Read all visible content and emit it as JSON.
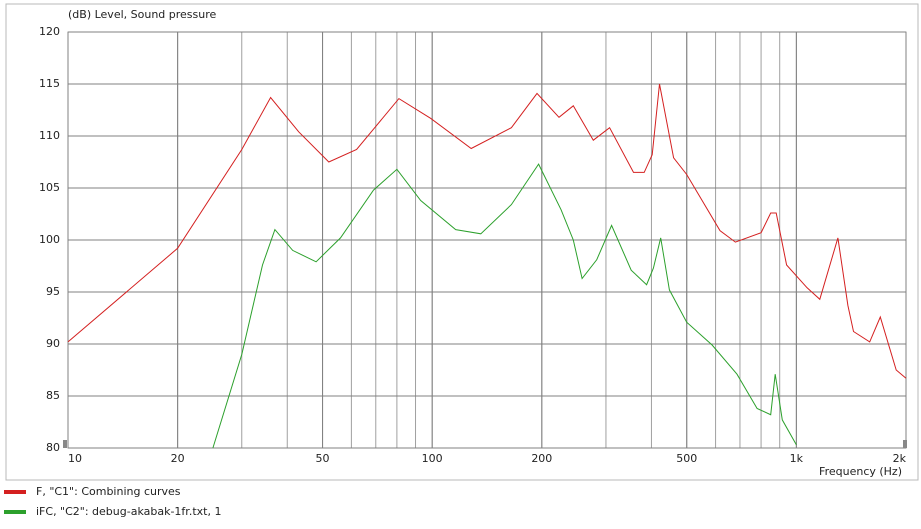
{
  "chart_data": {
    "type": "line",
    "ylabel": "(dB) Level, Sound pressure",
    "xlabel": "Frequency (Hz)",
    "xscale": "log",
    "grid": true,
    "xlim": [
      10,
      2000
    ],
    "ylim": [
      80,
      120
    ],
    "xticks": [
      10,
      20,
      50,
      100,
      200,
      500,
      {
        "value": 1000,
        "label": "1k"
      },
      {
        "value": 2000,
        "label": "2k"
      }
    ],
    "yticks": [
      80,
      85,
      90,
      95,
      100,
      105,
      110,
      115,
      120
    ],
    "legend": "bottom",
    "series": [
      {
        "name": "F, \"C1\": Combining curves",
        "color": "#d42020",
        "x": [
          10,
          20,
          30,
          36,
          43,
          52,
          62,
          81,
          99,
          128,
          165,
          194,
          223,
          244,
          277,
          307,
          357,
          382,
          402,
          421,
          460,
          500,
          617,
          680,
          800,
          850,
          880,
          940,
          1070,
          1160,
          1300,
          1385,
          1435,
          1590,
          1700,
          1880,
          2000
        ],
        "values": [
          90.2,
          99.2,
          108.7,
          113.7,
          110.4,
          107.5,
          108.7,
          113.6,
          111.7,
          108.8,
          110.8,
          114.1,
          111.8,
          112.9,
          109.6,
          110.8,
          106.5,
          106.5,
          108.2,
          115,
          107.9,
          106.3,
          100.9,
          99.8,
          100.7,
          102.6,
          102.6,
          97.6,
          95.4,
          94.3,
          100.2,
          93.7,
          91.2,
          90.2,
          92.6,
          87.5,
          86.7
        ]
      },
      {
        "name": "iFC, \"C2\": debug-akabak-1fr.txt, 1",
        "color": "#2ca02c",
        "x": [
          25,
          30,
          34.2,
          37,
          41.4,
          48,
          56,
          69,
          80,
          93,
          116,
          136,
          165,
          196,
          226,
          244,
          258,
          283,
          311,
          352,
          388,
          405,
          424,
          448,
          500,
          587,
          687,
          780,
          850,
          875,
          915,
          1000
        ],
        "values": [
          80,
          89,
          97.6,
          101,
          99,
          97.9,
          100.2,
          104.8,
          106.8,
          103.8,
          101,
          100.6,
          103.4,
          107.3,
          102.9,
          100,
          96.3,
          98.1,
          101.4,
          97.1,
          95.7,
          97.3,
          100.2,
          95.2,
          92.1,
          89.9,
          87.1,
          83.8,
          83.2,
          87.1,
          82.7,
          80.3
        ]
      }
    ]
  }
}
